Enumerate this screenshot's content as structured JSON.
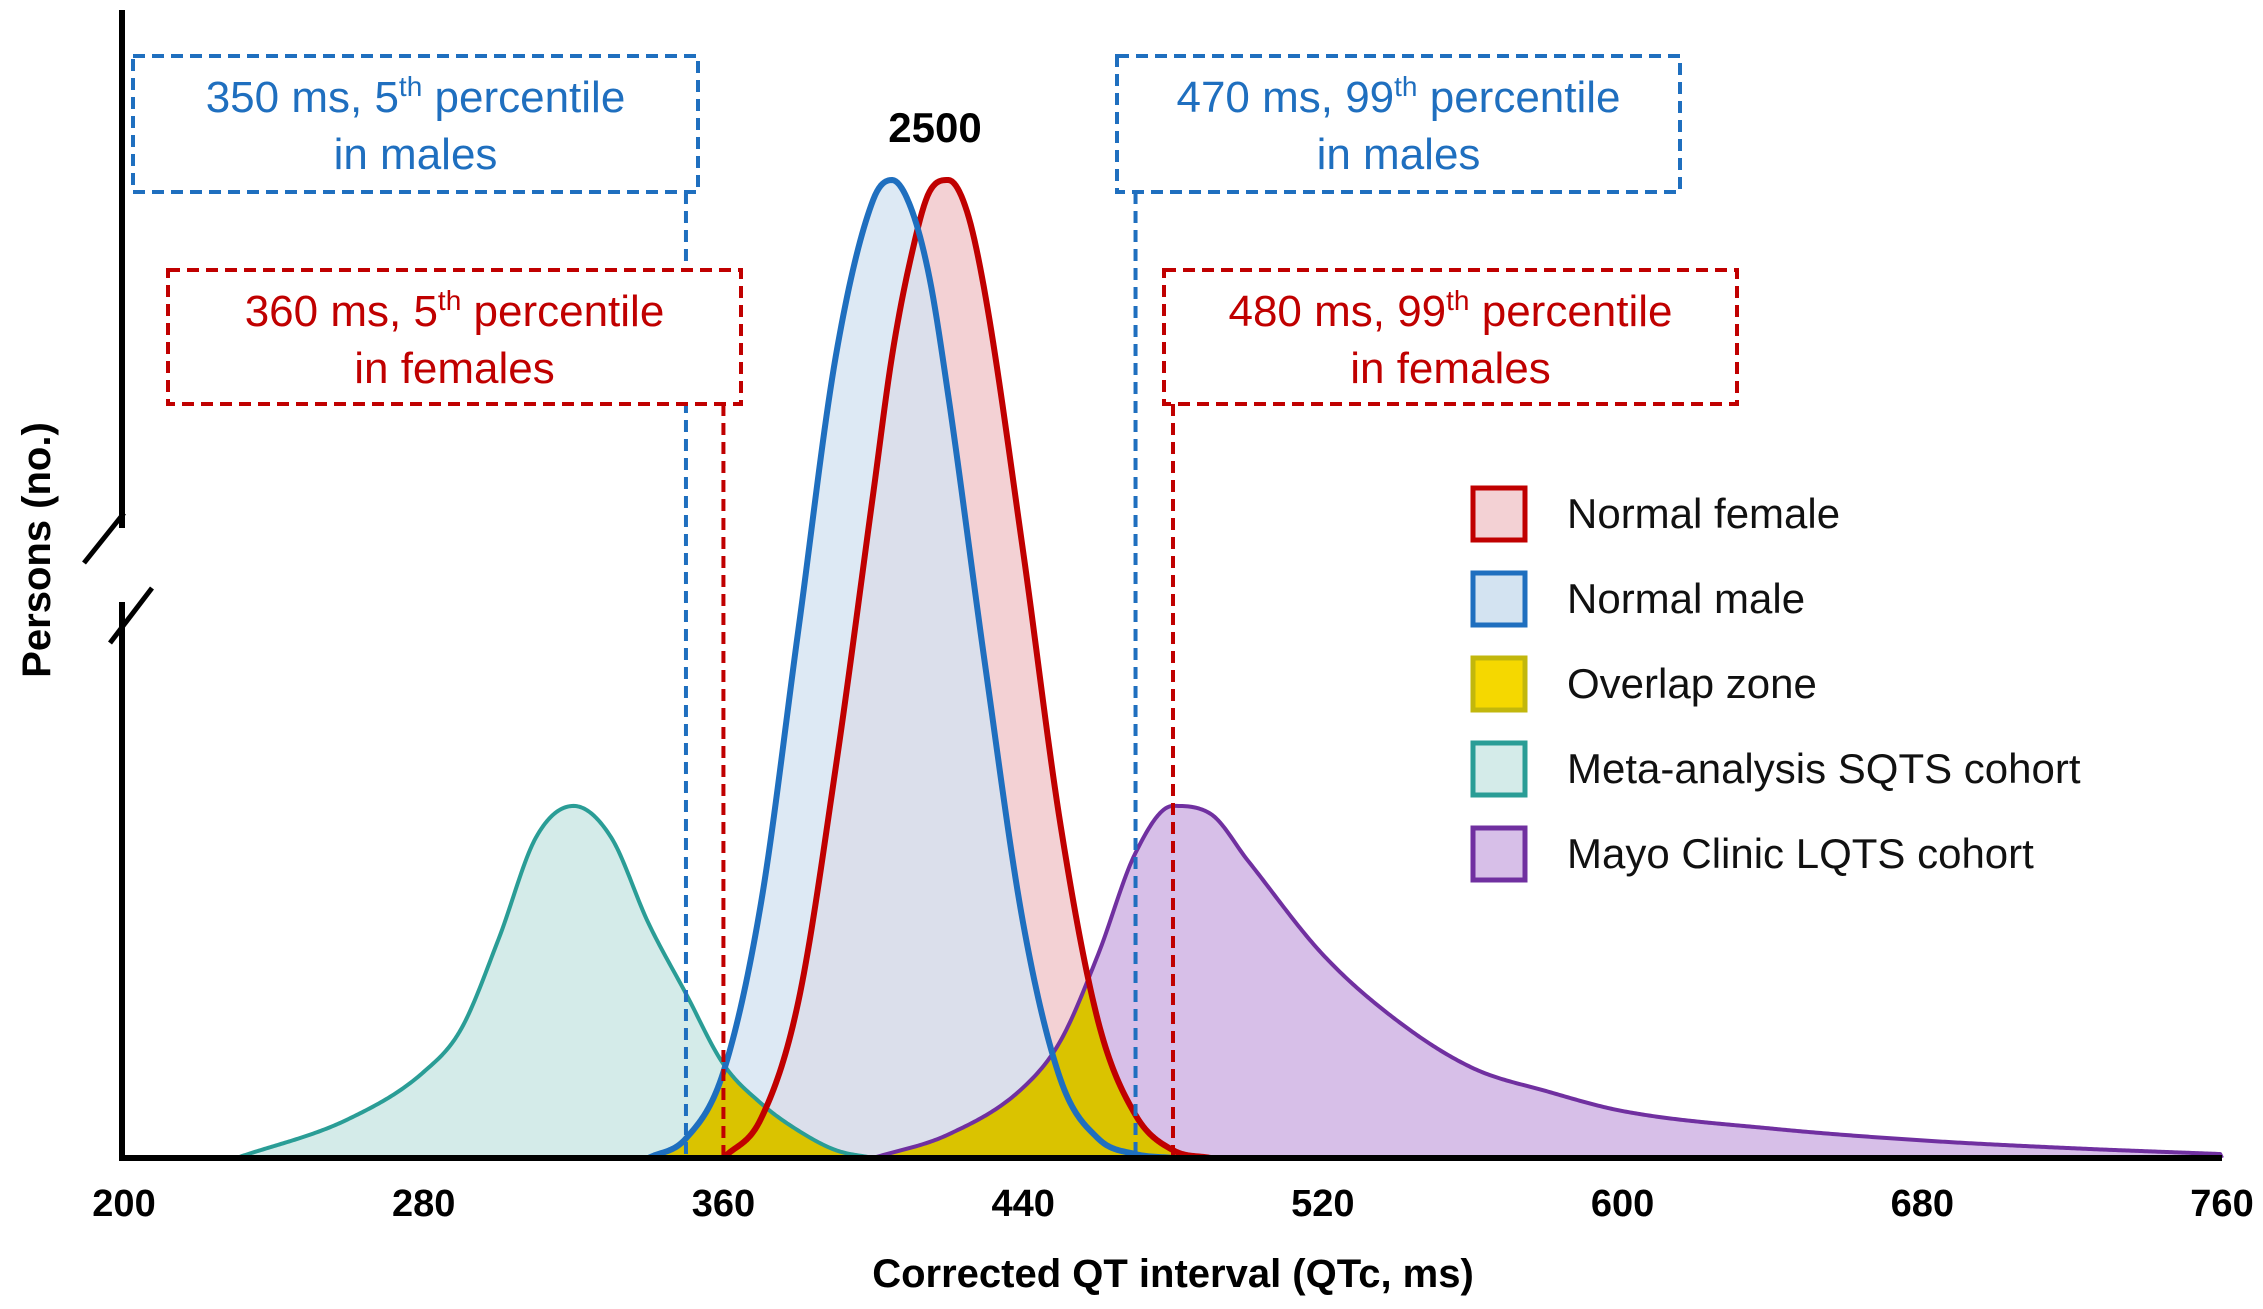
{
  "chart_data": {
    "type": "area",
    "xlabel": "Corrected QT interval (QTc, ms)",
    "ylabel": "Persons (no.)",
    "xlim": [
      200,
      760
    ],
    "x_ticks": [
      200,
      280,
      360,
      440,
      520,
      600,
      680,
      760
    ],
    "y_axis_break": true,
    "peak_label": {
      "text": "2500",
      "x": 405
    },
    "series": [
      {
        "name": "Normal female",
        "fill": "#f3d1d4",
        "stroke": "#c00000",
        "x": [
          360,
          370,
          380,
          390,
          400,
          405,
          410,
          415,
          420,
          425,
          430,
          440,
          450,
          460,
          470,
          480,
          490
        ],
        "y": [
          0,
          100,
          400,
          1000,
          1700,
          2050,
          2300,
          2470,
          2500,
          2420,
          2200,
          1550,
          850,
          350,
          110,
          20,
          0
        ]
      },
      {
        "name": "Normal male",
        "fill": "#d3e3f1",
        "stroke": "#1f6fbf",
        "x": [
          340,
          350,
          360,
          370,
          380,
          390,
          400,
          405,
          410,
          415,
          420,
          430,
          440,
          450,
          460,
          470,
          480
        ],
        "y": [
          0,
          50,
          220,
          650,
          1350,
          2050,
          2450,
          2500,
          2430,
          2250,
          1950,
          1250,
          600,
          200,
          50,
          10,
          0
        ]
      },
      {
        "name": "Meta-analysis SQTS cohort",
        "fill": "#d4ebe9",
        "stroke": "#2a9d96",
        "x": [
          230,
          260,
          280,
          290,
          300,
          310,
          320,
          330,
          340,
          350,
          360,
          370,
          380,
          390,
          400
        ],
        "y": [
          0,
          100,
          220,
          330,
          560,
          820,
          900,
          820,
          600,
          420,
          240,
          140,
          70,
          20,
          0
        ]
      },
      {
        "name": "Mayo Clinic LQTS cohort",
        "fill": "#d7bfe8",
        "stroke": "#7030a0",
        "x": [
          400,
          420,
          440,
          450,
          460,
          470,
          480,
          490,
          500,
          520,
          540,
          560,
          580,
          600,
          640,
          680,
          720,
          760
        ],
        "y": [
          0,
          60,
          180,
          300,
          520,
          780,
          900,
          880,
          760,
          520,
          350,
          230,
          170,
          120,
          75,
          45,
          25,
          10
        ]
      },
      {
        "name": "Overlap zone",
        "fill": "#f5d800",
        "stroke": "#c2b70c"
      }
    ],
    "legend": {
      "position": "right",
      "entries": [
        "Normal female",
        "Normal male",
        "Overlap zone",
        "Meta-analysis SQTS cohort",
        "Mayo Clinic LQTS cohort"
      ]
    },
    "reference_lines": [
      {
        "x": 350,
        "color": "#1f6fbf",
        "value": "350 ms",
        "percentile": "5",
        "suffix": "th",
        "word": "percentile",
        "line2": "in males"
      },
      {
        "x": 360,
        "color": "#c00000",
        "value": "360 ms",
        "percentile": "5",
        "suffix": "th",
        "word": "percentile",
        "line2": "in females"
      },
      {
        "x": 470,
        "color": "#1f6fbf",
        "value": "470 ms",
        "percentile": "99",
        "suffix": "th",
        "word": "percentile",
        "line2": "in males"
      },
      {
        "x": 480,
        "color": "#c00000",
        "value": "480 ms",
        "percentile": "99",
        "suffix": "th",
        "word": "percentile",
        "line2": "in females"
      }
    ]
  }
}
